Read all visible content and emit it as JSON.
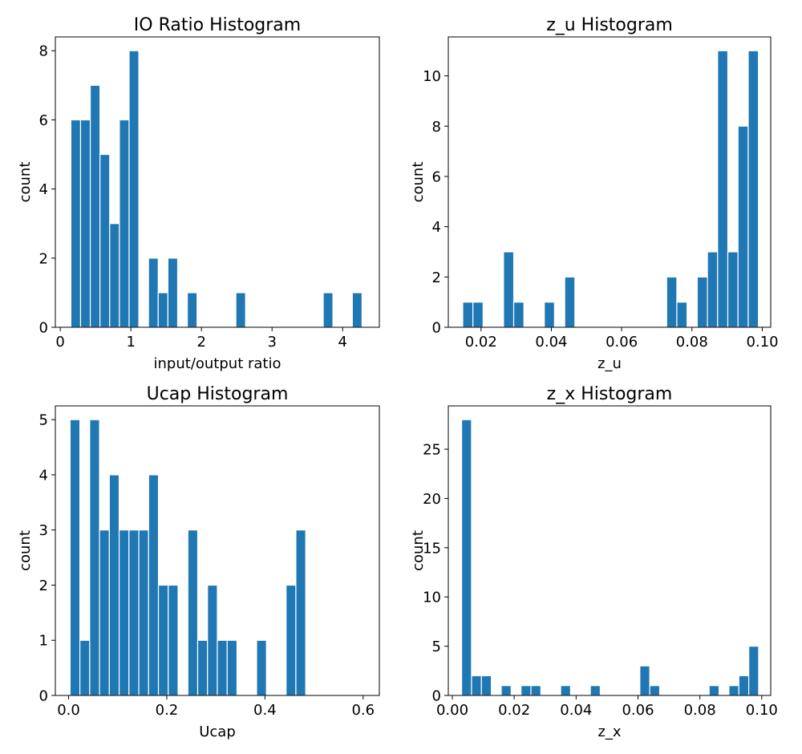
{
  "colors": {
    "bar": "#1f77b4",
    "bar_edge": "#ffffff",
    "axis": "#000000",
    "background": "#ffffff"
  },
  "chart_data": [
    {
      "type": "bar",
      "title": "IO Ratio Histogram",
      "xlabel": "input/output ratio",
      "ylabel": "count",
      "xlim": [
        -0.07,
        4.52
      ],
      "ylim": [
        0,
        8.4
      ],
      "xticks": [
        0,
        1,
        2,
        3,
        4
      ],
      "xtick_labels": [
        "0",
        "1",
        "2",
        "3",
        "4"
      ],
      "yticks": [
        0,
        2,
        4,
        6,
        8
      ],
      "ytick_labels": [
        "0",
        "2",
        "4",
        "6",
        "8"
      ],
      "bin_start": 0.15,
      "bin_width": 0.1375,
      "values": [
        6,
        6,
        7,
        5,
        3,
        6,
        8,
        0,
        2,
        1,
        2,
        0,
        1,
        0,
        0,
        0,
        0,
        1,
        0,
        0,
        0,
        0,
        0,
        0,
        0,
        0,
        1,
        0,
        0,
        1
      ],
      "grid": false,
      "legend": "none"
    },
    {
      "type": "bar",
      "title": "z_u Histogram",
      "xlabel": "z_u",
      "ylabel": "count",
      "xlim": [
        0.0107,
        0.1024
      ],
      "ylim": [
        0,
        11.55
      ],
      "xticks": [
        0.02,
        0.04,
        0.06,
        0.08,
        0.1
      ],
      "xtick_labels": [
        "0.02",
        "0.04",
        "0.06",
        "0.08",
        "0.10"
      ],
      "yticks": [
        0,
        2,
        4,
        6,
        8,
        10
      ],
      "ytick_labels": [
        "0",
        "2",
        "4",
        "6",
        "8",
        "10"
      ],
      "bin_start": 0.0148,
      "bin_width": 0.0029,
      "values": [
        1,
        1,
        0,
        0,
        3,
        1,
        0,
        0,
        1,
        0,
        2,
        0,
        0,
        0,
        0,
        0,
        0,
        0,
        0,
        0,
        2,
        1,
        0,
        2,
        3,
        11,
        3,
        8,
        11
      ],
      "grid": false,
      "legend": "none"
    },
    {
      "type": "bar",
      "title": "Ucap Histogram",
      "xlabel": "Ucap",
      "ylabel": "count",
      "xlim": [
        -0.027,
        0.633
      ],
      "ylim": [
        0,
        5.25
      ],
      "xticks": [
        0.0,
        0.2,
        0.4,
        0.6
      ],
      "xtick_labels": [
        "0.0",
        "0.2",
        "0.4",
        "0.6"
      ],
      "yticks": [
        0,
        1,
        2,
        3,
        4,
        5
      ],
      "ytick_labels": [
        "0",
        "1",
        "2",
        "3",
        "4",
        "5"
      ],
      "bin_start": 0.003,
      "bin_width": 0.02,
      "values": [
        5,
        1,
        5,
        3,
        4,
        3,
        3,
        3,
        4,
        2,
        2,
        0,
        3,
        1,
        2,
        1,
        1,
        0,
        0,
        1,
        0,
        0,
        2,
        3,
        0,
        0,
        0,
        0,
        0,
        0
      ],
      "grid": false,
      "legend": "none"
    },
    {
      "type": "bar",
      "title": "z_x Histogram",
      "xlabel": "z_x",
      "ylabel": "count",
      "xlim": [
        -0.0013,
        0.1029
      ],
      "ylim": [
        0,
        29.4
      ],
      "xticks": [
        0.0,
        0.02,
        0.04,
        0.06,
        0.08,
        0.1
      ],
      "xtick_labels": [
        "0.00",
        "0.02",
        "0.04",
        "0.06",
        "0.08",
        "0.10"
      ],
      "yticks": [
        0,
        5,
        10,
        15,
        20,
        25
      ],
      "ytick_labels": [
        "0",
        "5",
        "10",
        "15",
        "20",
        "25"
      ],
      "bin_start": 0.003,
      "bin_width": 0.0032,
      "values": [
        28,
        2,
        2,
        0,
        1,
        0,
        1,
        1,
        0,
        0,
        1,
        0,
        0,
        1,
        0,
        0,
        0,
        0,
        3,
        1,
        0,
        0,
        0,
        0,
        0,
        1,
        0,
        1,
        2,
        5
      ],
      "grid": false,
      "legend": "none"
    }
  ]
}
